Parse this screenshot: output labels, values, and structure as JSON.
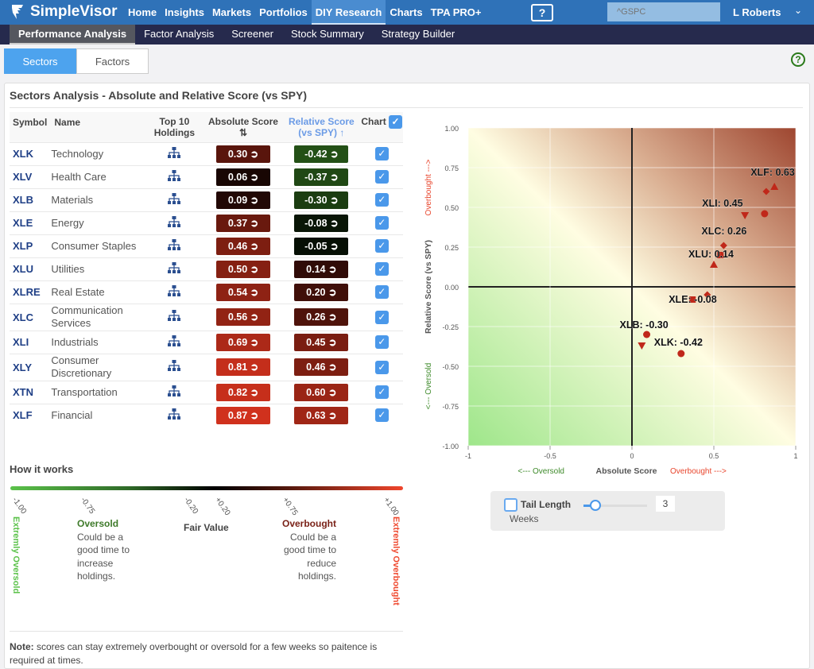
{
  "app": {
    "name": "SimpleVisor"
  },
  "nav": [
    {
      "label": "Home"
    },
    {
      "label": "Insights"
    },
    {
      "label": "Markets"
    },
    {
      "label": "Portfolios"
    },
    {
      "label": "DIY Research",
      "active": true
    },
    {
      "label": "Charts"
    },
    {
      "label": "TPA PRO+"
    }
  ],
  "help_screen_icon": "?",
  "search": {
    "placeholder": "^GSPC"
  },
  "user": {
    "name": "L Roberts",
    "chevron": "⌄"
  },
  "subnav": [
    {
      "label": "Performance Analysis",
      "active": true
    },
    {
      "label": "Factor Analysis"
    },
    {
      "label": "Screener"
    },
    {
      "label": "Stock Summary"
    },
    {
      "label": "Strategy Builder"
    }
  ],
  "tabs": [
    {
      "label": "Sectors",
      "active": true
    },
    {
      "label": "Factors"
    }
  ],
  "help_icon": "?",
  "panel": {
    "title": "Sectors Analysis - Absolute and Relative Score (vs SPY)"
  },
  "table": {
    "headers": {
      "symbol": "Symbol",
      "name": "Name",
      "top10": "Top 10 Holdings",
      "absolute": "Absolute Score",
      "relative": "Relative Score (vs SPY)",
      "chart": "Chart"
    },
    "rows": [
      {
        "symbol": "XLK",
        "name": "Technology",
        "abs": "0.30",
        "rel": "-0.42",
        "chart": true
      },
      {
        "symbol": "XLV",
        "name": "Health Care",
        "abs": "0.06",
        "rel": "-0.37",
        "chart": true
      },
      {
        "symbol": "XLB",
        "name": "Materials",
        "abs": "0.09",
        "rel": "-0.30",
        "chart": true
      },
      {
        "symbol": "XLE",
        "name": "Energy",
        "abs": "0.37",
        "rel": "-0.08",
        "chart": true
      },
      {
        "symbol": "XLP",
        "name": "Consumer Staples",
        "abs": "0.46",
        "rel": "-0.05",
        "chart": true
      },
      {
        "symbol": "XLU",
        "name": "Utilities",
        "abs": "0.50",
        "rel": "0.14",
        "chart": true
      },
      {
        "symbol": "XLRE",
        "name": "Real Estate",
        "abs": "0.54",
        "rel": "0.20",
        "chart": true
      },
      {
        "symbol": "XLC",
        "name": "Communication Services",
        "abs": "0.56",
        "rel": "0.26",
        "chart": true
      },
      {
        "symbol": "XLI",
        "name": "Industrials",
        "abs": "0.69",
        "rel": "0.45",
        "chart": true
      },
      {
        "symbol": "XLY",
        "name": "Consumer Discretionary",
        "abs": "0.81",
        "rel": "0.46",
        "chart": true
      },
      {
        "symbol": "XTN",
        "name": "Transportation",
        "abs": "0.82",
        "rel": "0.60",
        "chart": true
      },
      {
        "symbol": "XLF",
        "name": "Financial",
        "abs": "0.87",
        "rel": "0.63",
        "chart": true
      }
    ]
  },
  "how": {
    "title": "How it works",
    "ticks": [
      "-1.00",
      "-0.75",
      "-0.20",
      "+0.20",
      "+0.75",
      "+1.00"
    ],
    "extreme_oversold": "Extremly Oversold",
    "extreme_overbought": "Extremly Overbought",
    "oversold_title": "Oversold",
    "oversold_text": "Could be a good time to increase holdings.",
    "fair_value": "Fair Value",
    "overbought_title": "Overbought",
    "overbought_text": "Could be a good time to reduce holdings.",
    "note_bold": "Note:",
    "note_text": " scores can stay extremely overbought or oversold for a few weeks so paitence is required at times."
  },
  "colors": {
    "oversold": "#4caf3a",
    "overbought": "#e8452c",
    "marker": "#c0281a",
    "brand": "#2f72b8"
  },
  "chart_data": {
    "type": "scatter",
    "xlabel": "Absolute Score",
    "xlabel_left": "<--- Oversold",
    "xlabel_right": "Overbought --->",
    "ylabel": "Relative Score (vs SPY)",
    "ylabel_low": "<--- Oversold",
    "ylabel_high": "Overbought --->",
    "xlim": [
      -1,
      1
    ],
    "ylim": [
      -1,
      1
    ],
    "xticks": [
      "-1",
      "-0.5",
      "0",
      "0.5",
      "1"
    ],
    "yticks": [
      "1.00",
      "0.75",
      "0.50",
      "0.25",
      "0.00",
      "-0.25",
      "-0.50",
      "-0.75",
      "-1.00"
    ],
    "grid": true,
    "points": [
      {
        "symbol": "XLK",
        "x": 0.3,
        "y": -0.42,
        "marker": "circle",
        "label": "XLK: -0.42"
      },
      {
        "symbol": "XLV",
        "x": 0.06,
        "y": -0.37,
        "marker": "triangle-down"
      },
      {
        "symbol": "XLB",
        "x": 0.09,
        "y": -0.3,
        "marker": "circle",
        "label": "XLB: -0.30"
      },
      {
        "symbol": "XLE",
        "x": 0.37,
        "y": -0.08,
        "marker": "square",
        "label": "XLE: -0.08"
      },
      {
        "symbol": "XLP",
        "x": 0.46,
        "y": -0.05,
        "marker": "diamond"
      },
      {
        "symbol": "XLU",
        "x": 0.5,
        "y": 0.14,
        "marker": "triangle",
        "label": "XLU: 0.14"
      },
      {
        "symbol": "XLRE",
        "x": 0.54,
        "y": 0.2,
        "marker": "square"
      },
      {
        "symbol": "XLC",
        "x": 0.56,
        "y": 0.26,
        "marker": "diamond",
        "label": "XLC: 0.26"
      },
      {
        "symbol": "XLI",
        "x": 0.69,
        "y": 0.45,
        "marker": "triangle-down",
        "label": "XLI: 0.45"
      },
      {
        "symbol": "XLY",
        "x": 0.81,
        "y": 0.46,
        "marker": "circle"
      },
      {
        "symbol": "XTN",
        "x": 0.82,
        "y": 0.6,
        "marker": "diamond"
      },
      {
        "symbol": "XLF",
        "x": 0.87,
        "y": 0.63,
        "marker": "triangle",
        "label": "XLF: 0.63"
      }
    ]
  },
  "tail": {
    "label": "Tail Length",
    "unit": "Weeks",
    "value": "3",
    "min": 1,
    "max": 12
  }
}
